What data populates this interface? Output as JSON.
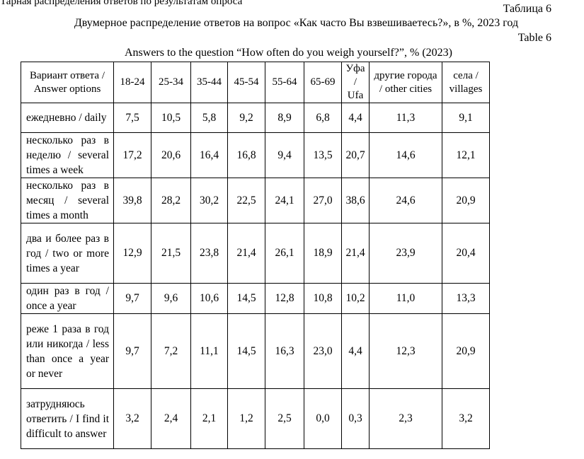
{
  "header": {
    "cut_line": "Тарная распределения ответов по результатам опроса",
    "label_ru": "Таблица 6",
    "title_ru": "Двумерное распределение ответов на вопрос «Как часто Вы взвешиваетесь?», в %, 2023 год",
    "label_en": "Table 6",
    "title_en": "Answers to the question “How often do you weigh yourself?”, % (2023)"
  },
  "table": {
    "columns": [
      "Вариант ответа / Answer options",
      "18-24",
      "25-34",
      "35-44",
      "45-54",
      "55-64",
      "65-69",
      "Уфа / Ufa",
      "другие города / other cities",
      "села / villages"
    ],
    "rows": [
      {
        "label": "ежедневно / daily",
        "values": [
          "7,5",
          "10,5",
          "5,8",
          "9,2",
          "8,9",
          "6,8",
          "4,4",
          "11,3",
          "9,1"
        ]
      },
      {
        "label": "несколько раз в неделю / several times a week",
        "values": [
          "17,2",
          "20,6",
          "16,4",
          "16,8",
          "9,4",
          "13,5",
          "20,7",
          "14,6",
          "12,1"
        ]
      },
      {
        "label": "несколько раз в месяц / several times a month",
        "values": [
          "39,8",
          "28,2",
          "30,2",
          "22,5",
          "24,1",
          "27,0",
          "38,6",
          "24,6",
          "20,9"
        ]
      },
      {
        "label": "два и более раз в год / two or more times a year",
        "values": [
          "12,9",
          "21,5",
          "23,8",
          "21,4",
          "26,1",
          "18,9",
          "21,4",
          "23,9",
          "20,4"
        ]
      },
      {
        "label": "один раз в год / once a year",
        "values": [
          "9,7",
          "9,6",
          "10,6",
          "14,5",
          "12,8",
          "10,8",
          "10,2",
          "11,0",
          "13,3"
        ]
      },
      {
        "label": "реже 1 раза в год или никогда / less than once a year or never",
        "values": [
          "9,7",
          "7,2",
          "11,1",
          "14,5",
          "16,3",
          "23,0",
          "4,4",
          "12,3",
          "20,9"
        ]
      },
      {
        "label": "затрудняюсь ответить / I find it difficult to answer",
        "values": [
          "3,2",
          "2,4",
          "2,1",
          "1,2",
          "2,5",
          "0,0",
          "0,3",
          "2,3",
          "3,2"
        ]
      }
    ]
  }
}
